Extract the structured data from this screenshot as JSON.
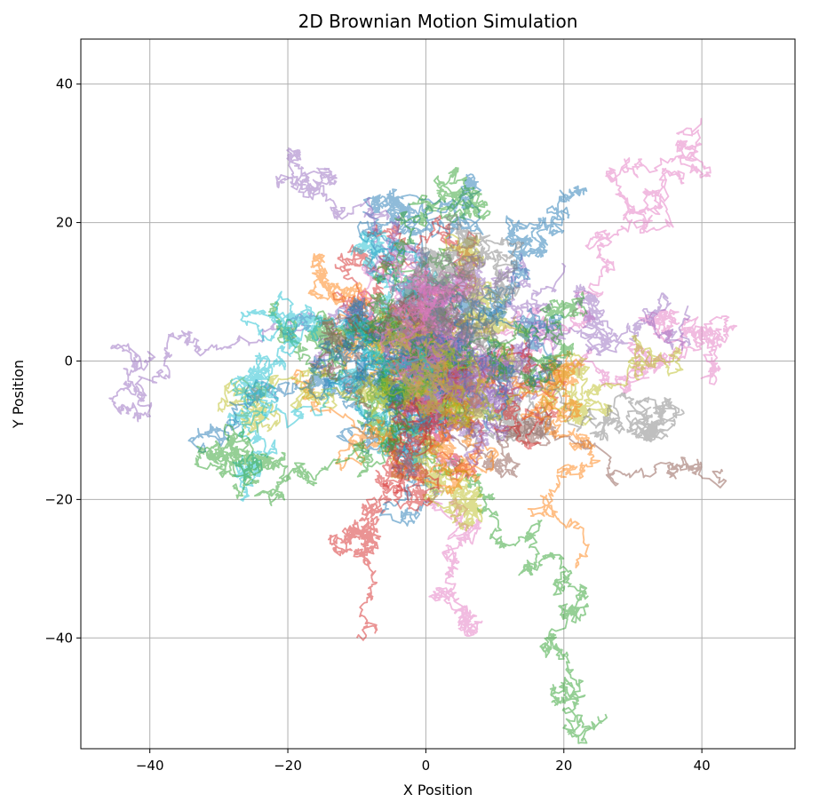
{
  "chart_data": {
    "type": "line",
    "title": "2D Brownian Motion Simulation",
    "xlabel": "X Position",
    "ylabel": "Y Position",
    "xlim": [
      -50,
      53.5
    ],
    "ylim": [
      -56,
      46.5
    ],
    "xticks": [
      -40,
      -20,
      0,
      20,
      40
    ],
    "yticks": [
      -40,
      -20,
      0,
      20,
      40
    ],
    "xtick_labels": [
      "−40",
      "−20",
      "0",
      "20",
      "40"
    ],
    "ytick_labels": [
      "−40",
      "−20",
      "0",
      "20",
      "40"
    ],
    "grid": true,
    "line_alpha": 0.5,
    "num_series": 50,
    "steps_per_series": 1000,
    "colors": [
      "#1f77b4",
      "#ff7f0e",
      "#2ca02c",
      "#d62728",
      "#9467bd",
      "#8c564b",
      "#e377c2",
      "#7f7f7f",
      "#bcbd22",
      "#17becf"
    ],
    "series_endpoints": [
      {
        "name": "walk-pink-long",
        "start": [
          0,
          0
        ],
        "end": [
          40,
          35
        ]
      },
      {
        "name": "walk-green-long",
        "start": [
          0,
          0
        ],
        "end": [
          26,
          -51
        ]
      },
      {
        "name": "walk-red-long",
        "start": [
          0,
          0
        ],
        "end": [
          -10,
          -40
        ]
      },
      {
        "name": "walk-purple-left",
        "start": [
          0,
          0
        ],
        "end": [
          -40,
          1
        ]
      },
      {
        "name": "walk-brown-right",
        "start": [
          0,
          0
        ],
        "end": [
          43,
          -16
        ]
      },
      {
        "name": "walk-purple-right",
        "start": [
          0,
          0
        ],
        "end": [
          38,
          8
        ]
      },
      {
        "name": "walk-yellow-right",
        "start": [
          0,
          0
        ],
        "end": [
          31,
          1
        ]
      },
      {
        "name": "walk-gray-right",
        "start": [
          0,
          0
        ],
        "end": [
          37,
          -7
        ]
      },
      {
        "name": "walk-blue-upper",
        "start": [
          0,
          0
        ],
        "end": [
          22,
          25
        ]
      },
      {
        "name": "walk-orange-lower",
        "start": [
          0,
          0
        ],
        "end": [
          22,
          -29
        ]
      },
      {
        "name": "walk-blue-left",
        "start": [
          0,
          0
        ],
        "end": [
          -33,
          -13
        ]
      },
      {
        "name": "walk-green-left",
        "start": [
          0,
          0
        ],
        "end": [
          -28,
          -18
        ]
      }
    ]
  }
}
